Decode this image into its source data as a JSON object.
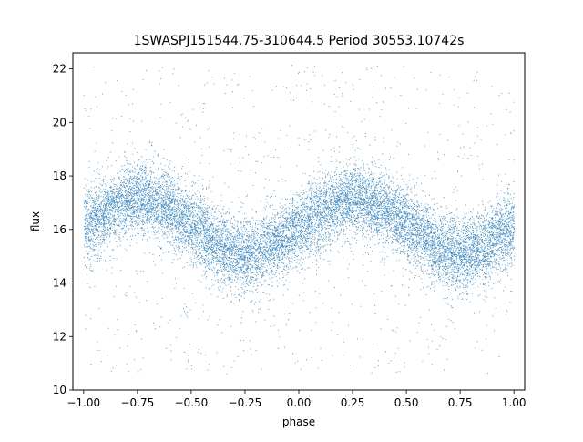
{
  "chart_data": {
    "type": "scatter",
    "title": "1SWASPJ151544.75-310644.5 Period 30553.10742s",
    "xlabel": "phase",
    "ylabel": "flux",
    "xlim": [
      -1.05,
      1.05
    ],
    "ylim": [
      10.0,
      22.6
    ],
    "x_ticks": [
      -1.0,
      -0.75,
      -0.5,
      -0.25,
      0.0,
      0.25,
      0.5,
      0.75,
      1.0
    ],
    "x_tick_labels": [
      "−1.00",
      "−0.75",
      "−0.50",
      "−0.25",
      "0.00",
      "0.25",
      "0.50",
      "0.75",
      "1.00"
    ],
    "y_ticks": [
      10,
      12,
      14,
      16,
      18,
      20,
      22
    ],
    "y_tick_labels": [
      "10",
      "12",
      "14",
      "16",
      "18",
      "20",
      "22"
    ],
    "grid": false,
    "legend": "none",
    "point_color": "#1f77b4",
    "series": [
      {
        "x_range": [
          -1.0,
          1.0
        ],
        "trend": {
          "x": [
            -1.0,
            -0.875,
            -0.75,
            -0.625,
            -0.5,
            -0.375,
            -0.25,
            -0.125,
            0.0,
            0.125,
            0.25,
            0.375,
            0.5,
            0.625,
            0.75,
            0.875,
            1.0
          ],
          "y": [
            16.1,
            16.8,
            17.2,
            16.9,
            16.2,
            15.4,
            15.0,
            15.4,
            16.1,
            16.8,
            17.2,
            16.9,
            16.2,
            15.4,
            15.0,
            15.4,
            16.1
          ]
        },
        "core_spread": 1.6,
        "approx_points": 60000
      }
    ]
  }
}
